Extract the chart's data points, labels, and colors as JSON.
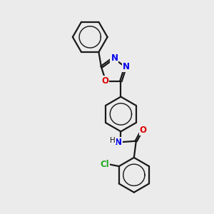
{
  "bg_color": "#ebebeb",
  "bond_color": "#1a1a1a",
  "bond_width": 1.6,
  "atom_colors": {
    "N": "#0000ee",
    "O": "#dd0000",
    "Cl": "#22aa22",
    "C": "#1a1a1a"
  },
  "font_size_atom": 8.5
}
